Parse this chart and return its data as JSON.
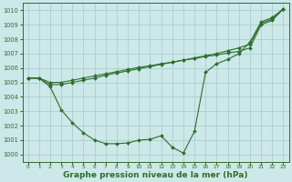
{
  "background_color": "#cce8e8",
  "grid_color": "#aad0cc",
  "line_color": "#2d6e2d",
  "marker_color": "#2d6e2d",
  "xlabel": "Graphe pression niveau de la mer (hPa)",
  "xlabel_fontsize": 6.5,
  "ylim": [
    999.5,
    1010.5
  ],
  "xlim": [
    -0.5,
    23.5
  ],
  "yticks": [
    1000,
    1001,
    1002,
    1003,
    1004,
    1005,
    1006,
    1007,
    1008,
    1009,
    1010
  ],
  "xticks": [
    0,
    1,
    2,
    3,
    4,
    5,
    6,
    7,
    8,
    9,
    10,
    11,
    12,
    13,
    14,
    15,
    16,
    17,
    18,
    19,
    20,
    21,
    22,
    23
  ],
  "series": [
    [
      1005.3,
      1005.3,
      1004.7,
      1003.1,
      1002.2,
      1001.5,
      1001.0,
      1000.75,
      1000.75,
      1000.8,
      1001.0,
      1001.05,
      1001.3,
      1000.5,
      1000.1,
      1001.6,
      1005.7,
      1006.3,
      1006.6,
      1007.0,
      1007.8,
      1009.2,
      1009.5,
      1010.1
    ],
    [
      1005.3,
      1005.3,
      1005.0,
      1005.0,
      1005.15,
      1005.3,
      1005.45,
      1005.6,
      1005.75,
      1005.9,
      1006.05,
      1006.15,
      1006.3,
      1006.4,
      1006.55,
      1006.65,
      1006.8,
      1006.9,
      1007.05,
      1007.15,
      1007.4,
      1009.0,
      1009.3,
      1010.1
    ],
    [
      1005.3,
      1005.3,
      1004.85,
      1004.85,
      1005.0,
      1005.15,
      1005.3,
      1005.5,
      1005.65,
      1005.8,
      1005.95,
      1006.1,
      1006.25,
      1006.4,
      1006.55,
      1006.7,
      1006.85,
      1007.0,
      1007.2,
      1007.4,
      1007.65,
      1009.1,
      1009.4,
      1010.1
    ]
  ]
}
